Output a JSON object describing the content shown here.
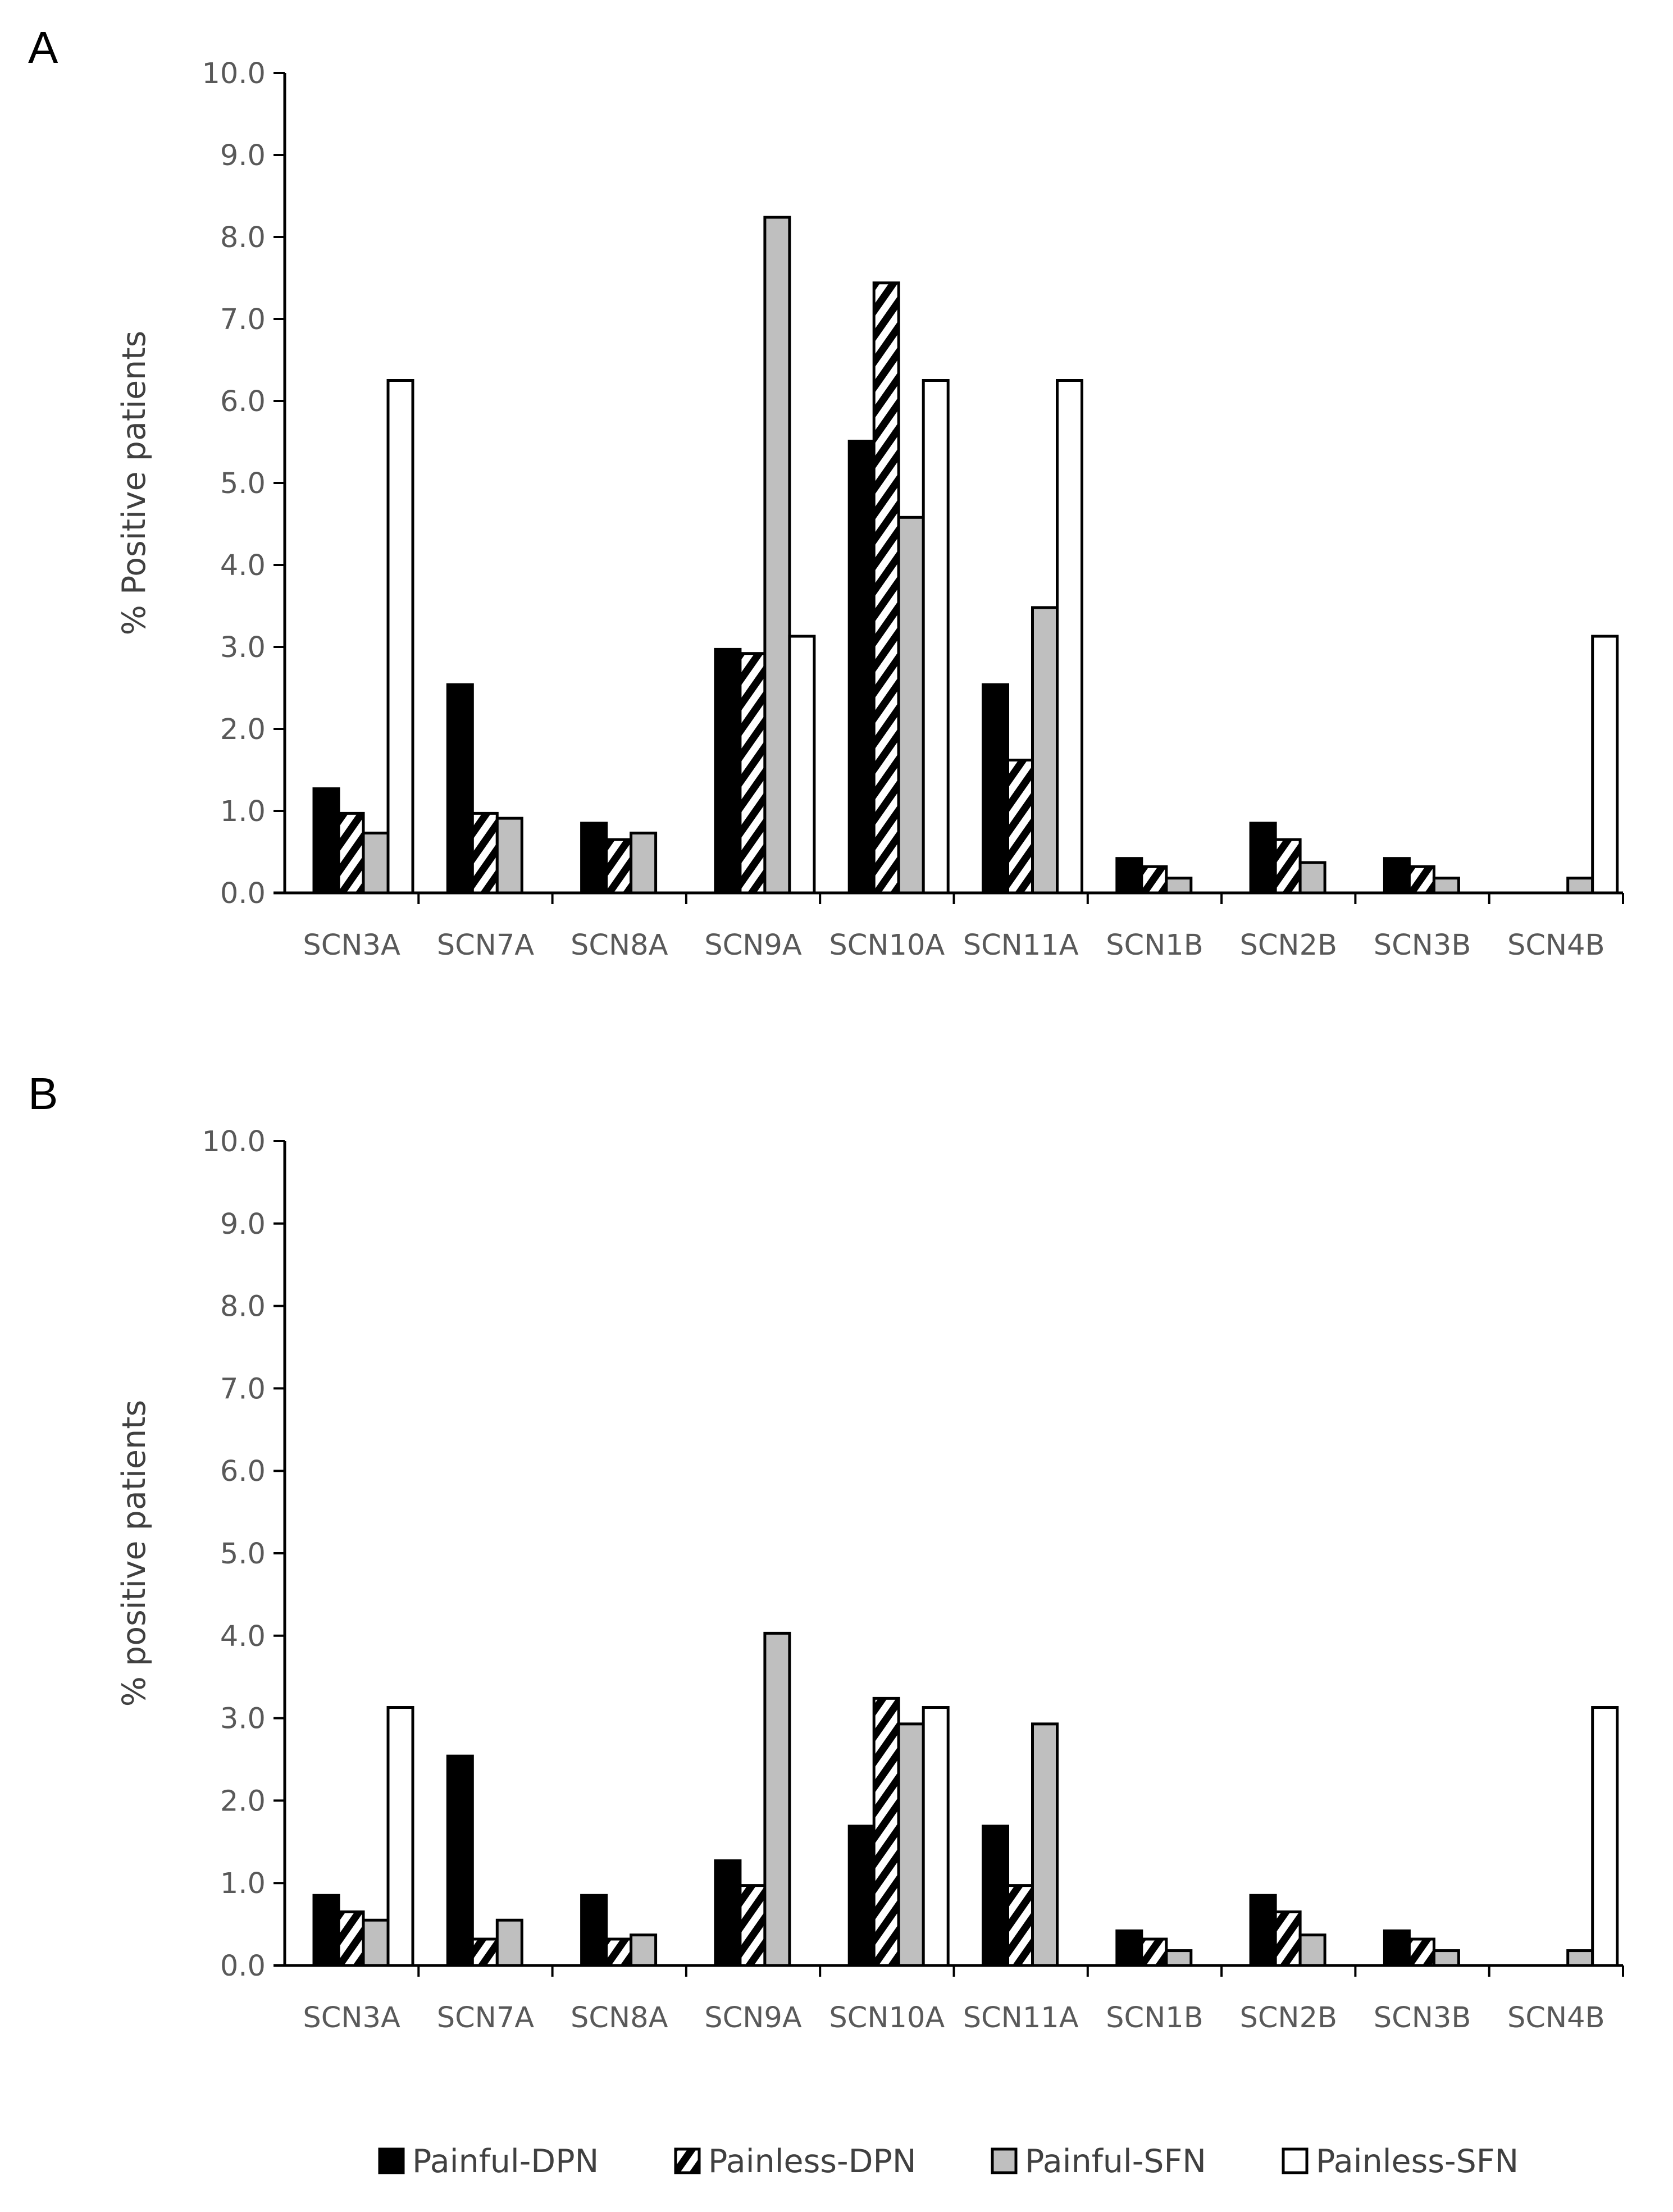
{
  "legend": {
    "items": [
      {
        "label": "Painful-DPN",
        "fill": "#000000",
        "pattern": "solid"
      },
      {
        "label": "Painless-DPN",
        "fill": "#ffffff",
        "pattern": "hatch"
      },
      {
        "label": "Painful-SFN",
        "fill": "#bfbfbf",
        "pattern": "solid"
      },
      {
        "label": "Painless-SFN",
        "fill": "#ffffff",
        "pattern": "solid"
      }
    ]
  },
  "chart_data": [
    {
      "type": "bar",
      "panel_label": "A",
      "title": "",
      "xlabel": "",
      "ylabel": "% Positive patients",
      "ylim": [
        0,
        10
      ],
      "yticks": [
        "0.0",
        "1.0",
        "2.0",
        "3.0",
        "4.0",
        "5.0",
        "6.0",
        "7.0",
        "8.0",
        "9.0",
        "10.0"
      ],
      "grid": false,
      "legend_position": "bottom",
      "categories": [
        "SCN3A",
        "SCN7A",
        "SCN8A",
        "SCN9A",
        "SCN10A",
        "SCN11A",
        "SCN1B",
        "SCN2B",
        "SCN3B",
        "SCN4B"
      ],
      "series": [
        {
          "name": "Painful-DPN",
          "values": [
            1.27,
            2.54,
            0.85,
            2.97,
            5.51,
            2.54,
            0.42,
            0.85,
            0.42,
            0
          ]
        },
        {
          "name": "Painless-DPN",
          "values": [
            0.97,
            0.97,
            0.65,
            2.92,
            7.44,
            1.62,
            0.32,
            0.65,
            0.32,
            0
          ]
        },
        {
          "name": "Painful-SFN",
          "values": [
            0.73,
            0.91,
            0.73,
            8.24,
            4.58,
            3.48,
            0.18,
            0.37,
            0.18,
            0.18
          ]
        },
        {
          "name": "Painless-SFN",
          "values": [
            6.25,
            0,
            0,
            3.13,
            6.25,
            6.25,
            0,
            0,
            0,
            3.13
          ]
        }
      ]
    },
    {
      "type": "bar",
      "panel_label": "B",
      "title": "",
      "xlabel": "",
      "ylabel": "% positive patients",
      "ylim": [
        0,
        10
      ],
      "yticks": [
        "0.0",
        "1.0",
        "2.0",
        "3.0",
        "4.0",
        "5.0",
        "6.0",
        "7.0",
        "8.0",
        "9.0",
        "10.0"
      ],
      "grid": false,
      "legend_position": "bottom",
      "categories": [
        "SCN3A",
        "SCN7A",
        "SCN8A",
        "SCN9A",
        "SCN10A",
        "SCN11A",
        "SCN1B",
        "SCN2B",
        "SCN3B",
        "SCN4B"
      ],
      "series": [
        {
          "name": "Painful-DPN",
          "values": [
            0.85,
            2.54,
            0.85,
            1.27,
            1.69,
            1.69,
            0.42,
            0.85,
            0.42,
            0
          ]
        },
        {
          "name": "Painless-DPN",
          "values": [
            0.65,
            0.32,
            0.32,
            0.97,
            3.24,
            0.97,
            0.32,
            0.65,
            0.32,
            0
          ]
        },
        {
          "name": "Painful-SFN",
          "values": [
            0.55,
            0.55,
            0.37,
            4.03,
            2.93,
            2.93,
            0.18,
            0.37,
            0.18,
            0.18
          ]
        },
        {
          "name": "Painless-SFN",
          "values": [
            3.13,
            0,
            0,
            0,
            3.13,
            0,
            0,
            0,
            0,
            3.13
          ]
        }
      ]
    }
  ]
}
